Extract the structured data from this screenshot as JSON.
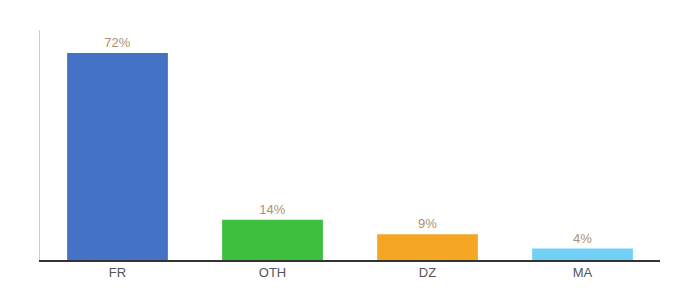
{
  "chart_data": {
    "type": "bar",
    "categories": [
      "FR",
      "OTH",
      "DZ",
      "MA"
    ],
    "values": [
      72,
      14,
      9,
      4
    ],
    "value_labels": [
      "72%",
      "14%",
      "9%",
      "4%"
    ],
    "colors": [
      "#4472c4",
      "#3dbf3d",
      "#f5a623",
      "#72cff5"
    ],
    "ylim": [
      0,
      80
    ],
    "grid": false,
    "data_labels": true,
    "tick_labels": "x"
  }
}
